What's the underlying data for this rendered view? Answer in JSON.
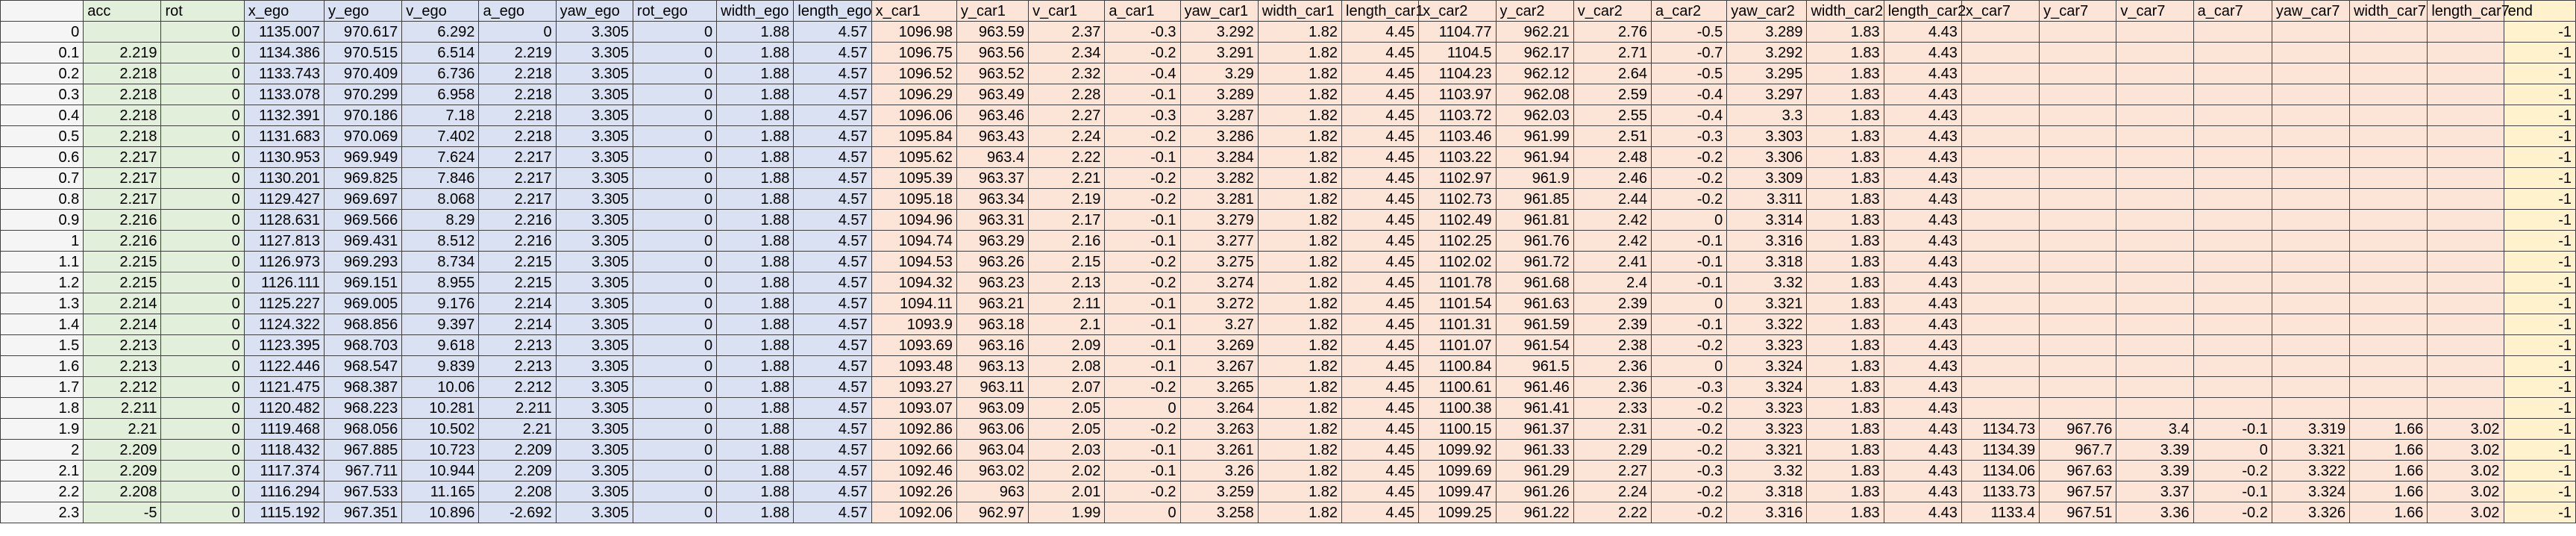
{
  "sheet": {
    "columns": [
      {
        "label": "",
        "group": "idx"
      },
      {
        "label": "acc",
        "group": "green"
      },
      {
        "label": "rot",
        "group": "green"
      },
      {
        "label": "x_ego",
        "group": "blue"
      },
      {
        "label": "y_ego",
        "group": "blue"
      },
      {
        "label": "v_ego",
        "group": "blue"
      },
      {
        "label": "a_ego",
        "group": "blue"
      },
      {
        "label": "yaw_ego",
        "group": "blue"
      },
      {
        "label": "rot_ego",
        "group": "blue"
      },
      {
        "label": "width_ego",
        "group": "blue"
      },
      {
        "label": "length_ego",
        "group": "blue"
      },
      {
        "label": "x_car1",
        "group": "orange"
      },
      {
        "label": "y_car1",
        "group": "orange"
      },
      {
        "label": "v_car1",
        "group": "orange"
      },
      {
        "label": "a_car1",
        "group": "orange"
      },
      {
        "label": "yaw_car1",
        "group": "orange"
      },
      {
        "label": "width_car1",
        "group": "orange"
      },
      {
        "label": "length_car1",
        "group": "orange"
      },
      {
        "label": "x_car2",
        "group": "orange"
      },
      {
        "label": "y_car2",
        "group": "orange"
      },
      {
        "label": "v_car2",
        "group": "orange"
      },
      {
        "label": "a_car2",
        "group": "orange"
      },
      {
        "label": "yaw_car2",
        "group": "orange"
      },
      {
        "label": "width_car2",
        "group": "orange"
      },
      {
        "label": "length_car2",
        "group": "orange"
      },
      {
        "label": "x_car7",
        "group": "orange"
      },
      {
        "label": "y_car7",
        "group": "orange"
      },
      {
        "label": "v_car7",
        "group": "orange"
      },
      {
        "label": "a_car7",
        "group": "orange"
      },
      {
        "label": "yaw_car7",
        "group": "orange"
      },
      {
        "label": "width_car7",
        "group": "orange"
      },
      {
        "label": "length_car7",
        "group": "orange"
      },
      {
        "label": "end",
        "group": "yellow"
      }
    ],
    "rows": [
      [
        "0",
        "",
        "0",
        "1135.007",
        "970.617",
        "6.292",
        "0",
        "3.305",
        "0",
        "1.88",
        "4.57",
        "1096.98",
        "963.59",
        "2.37",
        "-0.3",
        "3.292",
        "1.82",
        "4.45",
        "1104.77",
        "962.21",
        "2.76",
        "-0.5",
        "3.289",
        "1.83",
        "4.43",
        "",
        "",
        "",
        "",
        "",
        "",
        "",
        "-1"
      ],
      [
        "0.1",
        "2.219",
        "0",
        "1134.386",
        "970.515",
        "6.514",
        "2.219",
        "3.305",
        "0",
        "1.88",
        "4.57",
        "1096.75",
        "963.56",
        "2.34",
        "-0.2",
        "3.291",
        "1.82",
        "4.45",
        "1104.5",
        "962.17",
        "2.71",
        "-0.7",
        "3.292",
        "1.83",
        "4.43",
        "",
        "",
        "",
        "",
        "",
        "",
        "",
        "-1"
      ],
      [
        "0.2",
        "2.218",
        "0",
        "1133.743",
        "970.409",
        "6.736",
        "2.218",
        "3.305",
        "0",
        "1.88",
        "4.57",
        "1096.52",
        "963.52",
        "2.32",
        "-0.4",
        "3.29",
        "1.82",
        "4.45",
        "1104.23",
        "962.12",
        "2.64",
        "-0.5",
        "3.295",
        "1.83",
        "4.43",
        "",
        "",
        "",
        "",
        "",
        "",
        "",
        "-1"
      ],
      [
        "0.3",
        "2.218",
        "0",
        "1133.078",
        "970.299",
        "6.958",
        "2.218",
        "3.305",
        "0",
        "1.88",
        "4.57",
        "1096.29",
        "963.49",
        "2.28",
        "-0.1",
        "3.289",
        "1.82",
        "4.45",
        "1103.97",
        "962.08",
        "2.59",
        "-0.4",
        "3.297",
        "1.83",
        "4.43",
        "",
        "",
        "",
        "",
        "",
        "",
        "",
        "-1"
      ],
      [
        "0.4",
        "2.218",
        "0",
        "1132.391",
        "970.186",
        "7.18",
        "2.218",
        "3.305",
        "0",
        "1.88",
        "4.57",
        "1096.06",
        "963.46",
        "2.27",
        "-0.3",
        "3.287",
        "1.82",
        "4.45",
        "1103.72",
        "962.03",
        "2.55",
        "-0.4",
        "3.3",
        "1.83",
        "4.43",
        "",
        "",
        "",
        "",
        "",
        "",
        "",
        "-1"
      ],
      [
        "0.5",
        "2.218",
        "0",
        "1131.683",
        "970.069",
        "7.402",
        "2.218",
        "3.305",
        "0",
        "1.88",
        "4.57",
        "1095.84",
        "963.43",
        "2.24",
        "-0.2",
        "3.286",
        "1.82",
        "4.45",
        "1103.46",
        "961.99",
        "2.51",
        "-0.3",
        "3.303",
        "1.83",
        "4.43",
        "",
        "",
        "",
        "",
        "",
        "",
        "",
        "-1"
      ],
      [
        "0.6",
        "2.217",
        "0",
        "1130.953",
        "969.949",
        "7.624",
        "2.217",
        "3.305",
        "0",
        "1.88",
        "4.57",
        "1095.62",
        "963.4",
        "2.22",
        "-0.1",
        "3.284",
        "1.82",
        "4.45",
        "1103.22",
        "961.94",
        "2.48",
        "-0.2",
        "3.306",
        "1.83",
        "4.43",
        "",
        "",
        "",
        "",
        "",
        "",
        "",
        "-1"
      ],
      [
        "0.7",
        "2.217",
        "0",
        "1130.201",
        "969.825",
        "7.846",
        "2.217",
        "3.305",
        "0",
        "1.88",
        "4.57",
        "1095.39",
        "963.37",
        "2.21",
        "-0.2",
        "3.282",
        "1.82",
        "4.45",
        "1102.97",
        "961.9",
        "2.46",
        "-0.2",
        "3.309",
        "1.83",
        "4.43",
        "",
        "",
        "",
        "",
        "",
        "",
        "",
        "-1"
      ],
      [
        "0.8",
        "2.217",
        "0",
        "1129.427",
        "969.697",
        "8.068",
        "2.217",
        "3.305",
        "0",
        "1.88",
        "4.57",
        "1095.18",
        "963.34",
        "2.19",
        "-0.2",
        "3.281",
        "1.82",
        "4.45",
        "1102.73",
        "961.85",
        "2.44",
        "-0.2",
        "3.311",
        "1.83",
        "4.43",
        "",
        "",
        "",
        "",
        "",
        "",
        "",
        "-1"
      ],
      [
        "0.9",
        "2.216",
        "0",
        "1128.631",
        "969.566",
        "8.29",
        "2.216",
        "3.305",
        "0",
        "1.88",
        "4.57",
        "1094.96",
        "963.31",
        "2.17",
        "-0.1",
        "3.279",
        "1.82",
        "4.45",
        "1102.49",
        "961.81",
        "2.42",
        "0",
        "3.314",
        "1.83",
        "4.43",
        "",
        "",
        "",
        "",
        "",
        "",
        "",
        "-1"
      ],
      [
        "1",
        "2.216",
        "0",
        "1127.813",
        "969.431",
        "8.512",
        "2.216",
        "3.305",
        "0",
        "1.88",
        "4.57",
        "1094.74",
        "963.29",
        "2.16",
        "-0.1",
        "3.277",
        "1.82",
        "4.45",
        "1102.25",
        "961.76",
        "2.42",
        "-0.1",
        "3.316",
        "1.83",
        "4.43",
        "",
        "",
        "",
        "",
        "",
        "",
        "",
        "-1"
      ],
      [
        "1.1",
        "2.215",
        "0",
        "1126.973",
        "969.293",
        "8.734",
        "2.215",
        "3.305",
        "0",
        "1.88",
        "4.57",
        "1094.53",
        "963.26",
        "2.15",
        "-0.2",
        "3.275",
        "1.82",
        "4.45",
        "1102.02",
        "961.72",
        "2.41",
        "-0.1",
        "3.318",
        "1.83",
        "4.43",
        "",
        "",
        "",
        "",
        "",
        "",
        "",
        "-1"
      ],
      [
        "1.2",
        "2.215",
        "0",
        "1126.111",
        "969.151",
        "8.955",
        "2.215",
        "3.305",
        "0",
        "1.88",
        "4.57",
        "1094.32",
        "963.23",
        "2.13",
        "-0.2",
        "3.274",
        "1.82",
        "4.45",
        "1101.78",
        "961.68",
        "2.4",
        "-0.1",
        "3.32",
        "1.83",
        "4.43",
        "",
        "",
        "",
        "",
        "",
        "",
        "",
        "-1"
      ],
      [
        "1.3",
        "2.214",
        "0",
        "1125.227",
        "969.005",
        "9.176",
        "2.214",
        "3.305",
        "0",
        "1.88",
        "4.57",
        "1094.11",
        "963.21",
        "2.11",
        "-0.1",
        "3.272",
        "1.82",
        "4.45",
        "1101.54",
        "961.63",
        "2.39",
        "0",
        "3.321",
        "1.83",
        "4.43",
        "",
        "",
        "",
        "",
        "",
        "",
        "",
        "-1"
      ],
      [
        "1.4",
        "2.214",
        "0",
        "1124.322",
        "968.856",
        "9.397",
        "2.214",
        "3.305",
        "0",
        "1.88",
        "4.57",
        "1093.9",
        "963.18",
        "2.1",
        "-0.1",
        "3.27",
        "1.82",
        "4.45",
        "1101.31",
        "961.59",
        "2.39",
        "-0.1",
        "3.322",
        "1.83",
        "4.43",
        "",
        "",
        "",
        "",
        "",
        "",
        "",
        "-1"
      ],
      [
        "1.5",
        "2.213",
        "0",
        "1123.395",
        "968.703",
        "9.618",
        "2.213",
        "3.305",
        "0",
        "1.88",
        "4.57",
        "1093.69",
        "963.16",
        "2.09",
        "-0.1",
        "3.269",
        "1.82",
        "4.45",
        "1101.07",
        "961.54",
        "2.38",
        "-0.2",
        "3.323",
        "1.83",
        "4.43",
        "",
        "",
        "",
        "",
        "",
        "",
        "",
        "-1"
      ],
      [
        "1.6",
        "2.213",
        "0",
        "1122.446",
        "968.547",
        "9.839",
        "2.213",
        "3.305",
        "0",
        "1.88",
        "4.57",
        "1093.48",
        "963.13",
        "2.08",
        "-0.1",
        "3.267",
        "1.82",
        "4.45",
        "1100.84",
        "961.5",
        "2.36",
        "0",
        "3.324",
        "1.83",
        "4.43",
        "",
        "",
        "",
        "",
        "",
        "",
        "",
        "-1"
      ],
      [
        "1.7",
        "2.212",
        "0",
        "1121.475",
        "968.387",
        "10.06",
        "2.212",
        "3.305",
        "0",
        "1.88",
        "4.57",
        "1093.27",
        "963.11",
        "2.07",
        "-0.2",
        "3.265",
        "1.82",
        "4.45",
        "1100.61",
        "961.46",
        "2.36",
        "-0.3",
        "3.324",
        "1.83",
        "4.43",
        "",
        "",
        "",
        "",
        "",
        "",
        "",
        "-1"
      ],
      [
        "1.8",
        "2.211",
        "0",
        "1120.482",
        "968.223",
        "10.281",
        "2.211",
        "3.305",
        "0",
        "1.88",
        "4.57",
        "1093.07",
        "963.09",
        "2.05",
        "0",
        "3.264",
        "1.82",
        "4.45",
        "1100.38",
        "961.41",
        "2.33",
        "-0.2",
        "3.323",
        "1.83",
        "4.43",
        "",
        "",
        "",
        "",
        "",
        "",
        "",
        "-1"
      ],
      [
        "1.9",
        "2.21",
        "0",
        "1119.468",
        "968.056",
        "10.502",
        "2.21",
        "3.305",
        "0",
        "1.88",
        "4.57",
        "1092.86",
        "963.06",
        "2.05",
        "-0.2",
        "3.263",
        "1.82",
        "4.45",
        "1100.15",
        "961.37",
        "2.31",
        "-0.2",
        "3.323",
        "1.83",
        "4.43",
        "1134.73",
        "967.76",
        "3.4",
        "-0.1",
        "3.319",
        "1.66",
        "3.02",
        "-1"
      ],
      [
        "2",
        "2.209",
        "0",
        "1118.432",
        "967.885",
        "10.723",
        "2.209",
        "3.305",
        "0",
        "1.88",
        "4.57",
        "1092.66",
        "963.04",
        "2.03",
        "-0.1",
        "3.261",
        "1.82",
        "4.45",
        "1099.92",
        "961.33",
        "2.29",
        "-0.2",
        "3.321",
        "1.83",
        "4.43",
        "1134.39",
        "967.7",
        "3.39",
        "0",
        "3.321",
        "1.66",
        "3.02",
        "-1"
      ],
      [
        "2.1",
        "2.209",
        "0",
        "1117.374",
        "967.711",
        "10.944",
        "2.209",
        "3.305",
        "0",
        "1.88",
        "4.57",
        "1092.46",
        "963.02",
        "2.02",
        "-0.1",
        "3.26",
        "1.82",
        "4.45",
        "1099.69",
        "961.29",
        "2.27",
        "-0.3",
        "3.32",
        "1.83",
        "4.43",
        "1134.06",
        "967.63",
        "3.39",
        "-0.2",
        "3.322",
        "1.66",
        "3.02",
        "-1"
      ],
      [
        "2.2",
        "2.208",
        "0",
        "1116.294",
        "967.533",
        "11.165",
        "2.208",
        "3.305",
        "0",
        "1.88",
        "4.57",
        "1092.26",
        "963",
        "2.01",
        "-0.2",
        "3.259",
        "1.82",
        "4.45",
        "1099.47",
        "961.26",
        "2.24",
        "-0.2",
        "3.318",
        "1.83",
        "4.43",
        "1133.73",
        "967.57",
        "3.37",
        "-0.1",
        "3.324",
        "1.66",
        "3.02",
        "-1"
      ],
      [
        "2.3",
        "-5",
        "0",
        "1115.192",
        "967.351",
        "10.896",
        "-2.692",
        "3.305",
        "0",
        "1.88",
        "4.57",
        "1092.06",
        "962.97",
        "1.99",
        "0",
        "3.258",
        "1.82",
        "4.45",
        "1099.25",
        "961.22",
        "2.22",
        "-0.2",
        "3.316",
        "1.83",
        "4.43",
        "1133.4",
        "967.51",
        "3.36",
        "-0.2",
        "3.326",
        "1.66",
        "3.02",
        "-1"
      ]
    ]
  },
  "colors": {
    "idx": "#f5f5f5",
    "green": "#e2efda",
    "blue": "#d9e1f2",
    "orange": "#fce4d6",
    "yellow": "#fff2cc",
    "gridline": "#3f3f3f"
  }
}
